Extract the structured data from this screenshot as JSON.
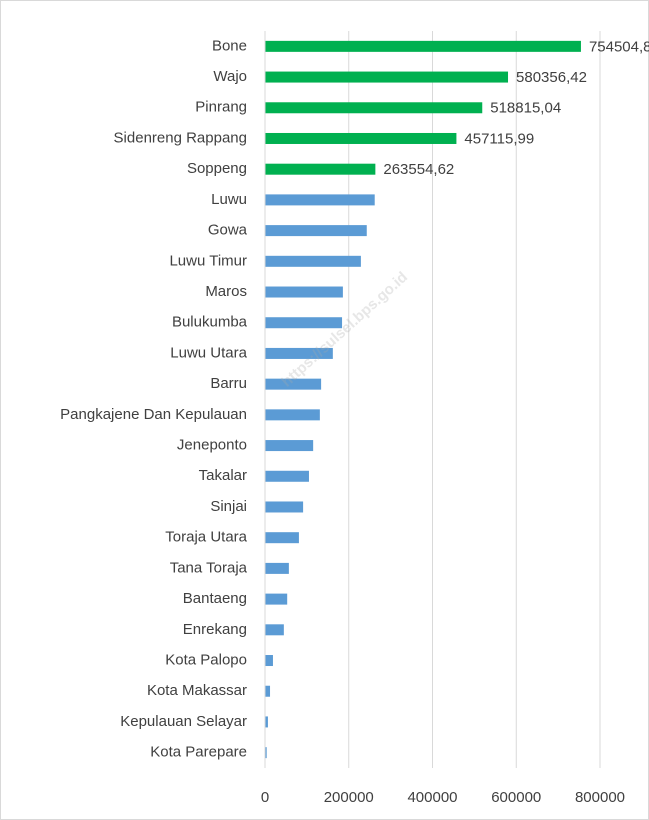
{
  "chart_data": {
    "type": "bar",
    "orientation": "horizontal",
    "watermark": "https://sulsel.bps.go.id",
    "categories": [
      "Bone",
      "Wajo",
      "Pinrang",
      "Sidenreng Rappang",
      "Soppeng",
      "Luwu",
      "Gowa",
      "Luwu Timur",
      "Maros",
      "Bulukumba",
      "Luwu Utara",
      "Barru",
      "Pangkajene Dan Kepulauan",
      "Jeneponto",
      "Takalar",
      "Sinjai",
      "Toraja Utara",
      "Tana Toraja",
      "Bantaeng",
      "Enrekang",
      "Kota Palopo",
      "Kota Makassar",
      "Kepulauan Selayar",
      "Kota Parepare"
    ],
    "values": [
      754504.8,
      580356.42,
      518815.04,
      457115.99,
      263554.62,
      262000,
      243000,
      229000,
      186000,
      184000,
      162000,
      134000,
      131000,
      115000,
      105000,
      91000,
      81000,
      57000,
      53000,
      45000,
      19000,
      12000,
      7000,
      4000
    ],
    "value_labels": [
      "754504,8",
      "580356,42",
      "518815,04",
      "457115,99",
      "263554,62",
      null,
      null,
      null,
      null,
      null,
      null,
      null,
      null,
      null,
      null,
      null,
      null,
      null,
      null,
      null,
      null,
      null,
      null,
      null
    ],
    "colors": [
      "#00b050",
      "#00b050",
      "#00b050",
      "#00b050",
      "#00b050",
      "#5b9bd5",
      "#5b9bd5",
      "#5b9bd5",
      "#5b9bd5",
      "#5b9bd5",
      "#5b9bd5",
      "#5b9bd5",
      "#5b9bd5",
      "#5b9bd5",
      "#5b9bd5",
      "#5b9bd5",
      "#5b9bd5",
      "#5b9bd5",
      "#5b9bd5",
      "#5b9bd5",
      "#5b9bd5",
      "#5b9bd5",
      "#5b9bd5",
      "#5b9bd5"
    ],
    "xlim": [
      0,
      800000
    ],
    "xticks": [
      0,
      200000,
      400000,
      600000,
      800000
    ],
    "grid": true
  }
}
